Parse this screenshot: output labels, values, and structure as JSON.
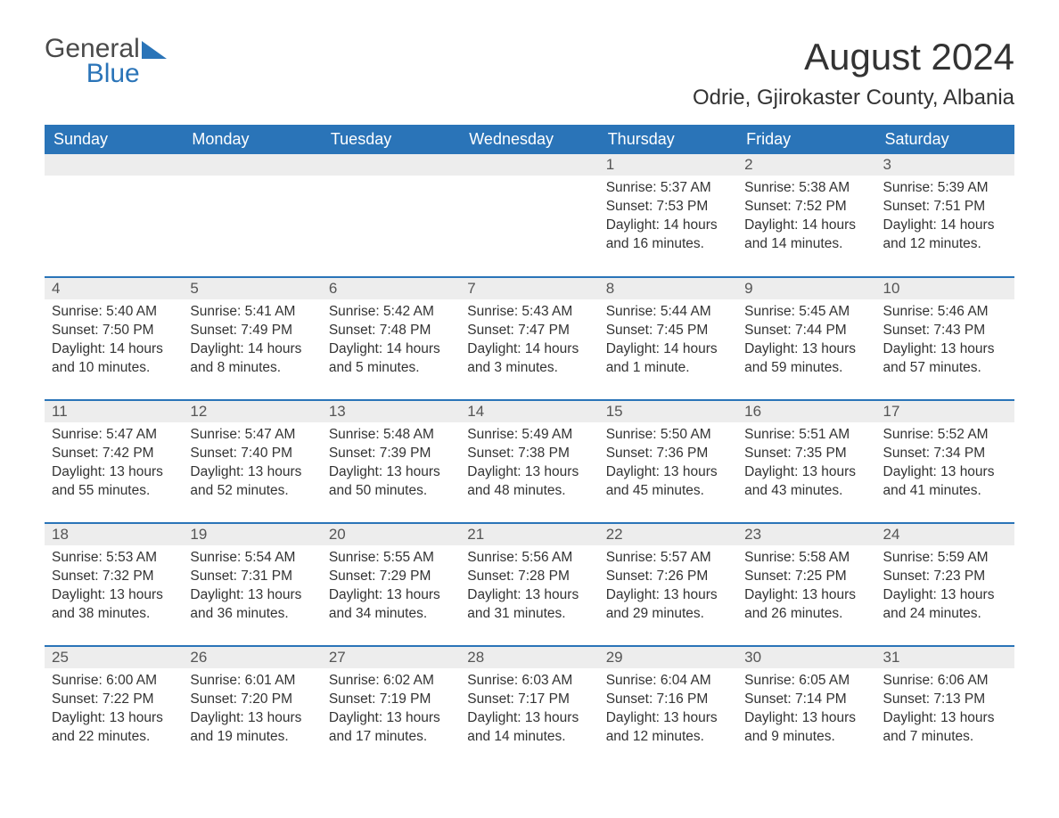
{
  "logo": {
    "word1": "General",
    "word2": "Blue"
  },
  "title": "August 2024",
  "location": "Odrie, Gjirokaster County, Albania",
  "colors": {
    "header_bg": "#2a74b8",
    "header_text": "#ffffff",
    "daynum_bg": "#ededed",
    "row_divider": "#2a74b8",
    "body_text": "#333333"
  },
  "weekdays": [
    "Sunday",
    "Monday",
    "Tuesday",
    "Wednesday",
    "Thursday",
    "Friday",
    "Saturday"
  ],
  "weeks": [
    [
      null,
      null,
      null,
      null,
      {
        "n": "1",
        "sunrise": "Sunrise: 5:37 AM",
        "sunset": "Sunset: 7:53 PM",
        "daylight": "Daylight: 14 hours and 16 minutes."
      },
      {
        "n": "2",
        "sunrise": "Sunrise: 5:38 AM",
        "sunset": "Sunset: 7:52 PM",
        "daylight": "Daylight: 14 hours and 14 minutes."
      },
      {
        "n": "3",
        "sunrise": "Sunrise: 5:39 AM",
        "sunset": "Sunset: 7:51 PM",
        "daylight": "Daylight: 14 hours and 12 minutes."
      }
    ],
    [
      {
        "n": "4",
        "sunrise": "Sunrise: 5:40 AM",
        "sunset": "Sunset: 7:50 PM",
        "daylight": "Daylight: 14 hours and 10 minutes."
      },
      {
        "n": "5",
        "sunrise": "Sunrise: 5:41 AM",
        "sunset": "Sunset: 7:49 PM",
        "daylight": "Daylight: 14 hours and 8 minutes."
      },
      {
        "n": "6",
        "sunrise": "Sunrise: 5:42 AM",
        "sunset": "Sunset: 7:48 PM",
        "daylight": "Daylight: 14 hours and 5 minutes."
      },
      {
        "n": "7",
        "sunrise": "Sunrise: 5:43 AM",
        "sunset": "Sunset: 7:47 PM",
        "daylight": "Daylight: 14 hours and 3 minutes."
      },
      {
        "n": "8",
        "sunrise": "Sunrise: 5:44 AM",
        "sunset": "Sunset: 7:45 PM",
        "daylight": "Daylight: 14 hours and 1 minute."
      },
      {
        "n": "9",
        "sunrise": "Sunrise: 5:45 AM",
        "sunset": "Sunset: 7:44 PM",
        "daylight": "Daylight: 13 hours and 59 minutes."
      },
      {
        "n": "10",
        "sunrise": "Sunrise: 5:46 AM",
        "sunset": "Sunset: 7:43 PM",
        "daylight": "Daylight: 13 hours and 57 minutes."
      }
    ],
    [
      {
        "n": "11",
        "sunrise": "Sunrise: 5:47 AM",
        "sunset": "Sunset: 7:42 PM",
        "daylight": "Daylight: 13 hours and 55 minutes."
      },
      {
        "n": "12",
        "sunrise": "Sunrise: 5:47 AM",
        "sunset": "Sunset: 7:40 PM",
        "daylight": "Daylight: 13 hours and 52 minutes."
      },
      {
        "n": "13",
        "sunrise": "Sunrise: 5:48 AM",
        "sunset": "Sunset: 7:39 PM",
        "daylight": "Daylight: 13 hours and 50 minutes."
      },
      {
        "n": "14",
        "sunrise": "Sunrise: 5:49 AM",
        "sunset": "Sunset: 7:38 PM",
        "daylight": "Daylight: 13 hours and 48 minutes."
      },
      {
        "n": "15",
        "sunrise": "Sunrise: 5:50 AM",
        "sunset": "Sunset: 7:36 PM",
        "daylight": "Daylight: 13 hours and 45 minutes."
      },
      {
        "n": "16",
        "sunrise": "Sunrise: 5:51 AM",
        "sunset": "Sunset: 7:35 PM",
        "daylight": "Daylight: 13 hours and 43 minutes."
      },
      {
        "n": "17",
        "sunrise": "Sunrise: 5:52 AM",
        "sunset": "Sunset: 7:34 PM",
        "daylight": "Daylight: 13 hours and 41 minutes."
      }
    ],
    [
      {
        "n": "18",
        "sunrise": "Sunrise: 5:53 AM",
        "sunset": "Sunset: 7:32 PM",
        "daylight": "Daylight: 13 hours and 38 minutes."
      },
      {
        "n": "19",
        "sunrise": "Sunrise: 5:54 AM",
        "sunset": "Sunset: 7:31 PM",
        "daylight": "Daylight: 13 hours and 36 minutes."
      },
      {
        "n": "20",
        "sunrise": "Sunrise: 5:55 AM",
        "sunset": "Sunset: 7:29 PM",
        "daylight": "Daylight: 13 hours and 34 minutes."
      },
      {
        "n": "21",
        "sunrise": "Sunrise: 5:56 AM",
        "sunset": "Sunset: 7:28 PM",
        "daylight": "Daylight: 13 hours and 31 minutes."
      },
      {
        "n": "22",
        "sunrise": "Sunrise: 5:57 AM",
        "sunset": "Sunset: 7:26 PM",
        "daylight": "Daylight: 13 hours and 29 minutes."
      },
      {
        "n": "23",
        "sunrise": "Sunrise: 5:58 AM",
        "sunset": "Sunset: 7:25 PM",
        "daylight": "Daylight: 13 hours and 26 minutes."
      },
      {
        "n": "24",
        "sunrise": "Sunrise: 5:59 AM",
        "sunset": "Sunset: 7:23 PM",
        "daylight": "Daylight: 13 hours and 24 minutes."
      }
    ],
    [
      {
        "n": "25",
        "sunrise": "Sunrise: 6:00 AM",
        "sunset": "Sunset: 7:22 PM",
        "daylight": "Daylight: 13 hours and 22 minutes."
      },
      {
        "n": "26",
        "sunrise": "Sunrise: 6:01 AM",
        "sunset": "Sunset: 7:20 PM",
        "daylight": "Daylight: 13 hours and 19 minutes."
      },
      {
        "n": "27",
        "sunrise": "Sunrise: 6:02 AM",
        "sunset": "Sunset: 7:19 PM",
        "daylight": "Daylight: 13 hours and 17 minutes."
      },
      {
        "n": "28",
        "sunrise": "Sunrise: 6:03 AM",
        "sunset": "Sunset: 7:17 PM",
        "daylight": "Daylight: 13 hours and 14 minutes."
      },
      {
        "n": "29",
        "sunrise": "Sunrise: 6:04 AM",
        "sunset": "Sunset: 7:16 PM",
        "daylight": "Daylight: 13 hours and 12 minutes."
      },
      {
        "n": "30",
        "sunrise": "Sunrise: 6:05 AM",
        "sunset": "Sunset: 7:14 PM",
        "daylight": "Daylight: 13 hours and 9 minutes."
      },
      {
        "n": "31",
        "sunrise": "Sunrise: 6:06 AM",
        "sunset": "Sunset: 7:13 PM",
        "daylight": "Daylight: 13 hours and 7 minutes."
      }
    ]
  ]
}
